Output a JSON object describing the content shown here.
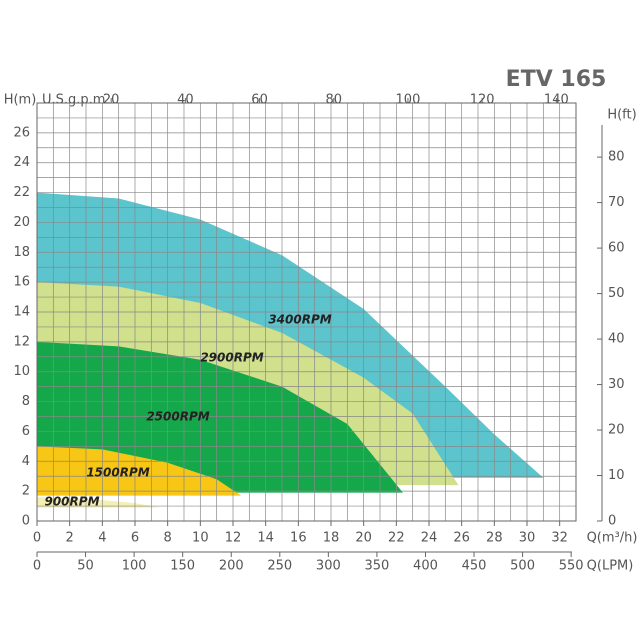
{
  "chart_data": {
    "type": "area",
    "title": "ETV 165",
    "xlabel": "Q(m³/h)",
    "ylabel": "H(m)",
    "x2label": "U.S.g.p.m",
    "y2label": "H(ft)",
    "x3label": "Q(LPM)",
    "xlim": [
      0,
      33
    ],
    "xticks": [
      0,
      2,
      4,
      6,
      8,
      10,
      12,
      14,
      16,
      18,
      20,
      22,
      24,
      26,
      28,
      30,
      32
    ],
    "ylim": [
      0,
      28
    ],
    "yticks": [
      0,
      2,
      4,
      6,
      8,
      10,
      12,
      14,
      16,
      18,
      20,
      22,
      24,
      26
    ],
    "x2lim": [
      0,
      145.3
    ],
    "x2ticks": [
      20,
      40,
      60,
      80,
      100,
      120,
      140
    ],
    "y2lim": [
      0,
      91.9
    ],
    "y2ticks": [
      0,
      10,
      20,
      30,
      40,
      50,
      60,
      70,
      80
    ],
    "x3lim": [
      0,
      555
    ],
    "x3ticks": [
      0,
      50,
      100,
      150,
      200,
      250,
      300,
      350,
      400,
      450,
      500,
      550
    ],
    "grid": true,
    "series": [
      {
        "name": "3400RPM",
        "color": "#5cc4cd",
        "x": [
          0,
          5,
          10,
          15,
          20,
          25,
          28,
          31
        ],
        "values": [
          22,
          21.6,
          20.2,
          17.8,
          14.2,
          9,
          5.8,
          2.9
        ]
      },
      {
        "name": "2900RPM",
        "color": "#d0e08c",
        "x": [
          0,
          5,
          10,
          15,
          20,
          23,
          25.8
        ],
        "values": [
          16,
          15.7,
          14.6,
          12.6,
          9.6,
          7.2,
          2.4
        ]
      },
      {
        "name": "2500RPM",
        "color": "#15a84b",
        "x": [
          0,
          5,
          10,
          15,
          19,
          22.4
        ],
        "values": [
          12,
          11.7,
          10.8,
          9,
          6.5,
          1.9
        ]
      },
      {
        "name": "1500RPM",
        "color": "#f8c614",
        "x": [
          0,
          4,
          8,
          11,
          12.5
        ],
        "values": [
          5,
          4.8,
          3.9,
          2.8,
          1.7
        ]
      },
      {
        "name": "900RPM",
        "color": "#f5efb2",
        "x": [
          0,
          3,
          6,
          7.5
        ],
        "values": [
          1.6,
          1.5,
          1.2,
          0.9
        ]
      }
    ]
  }
}
